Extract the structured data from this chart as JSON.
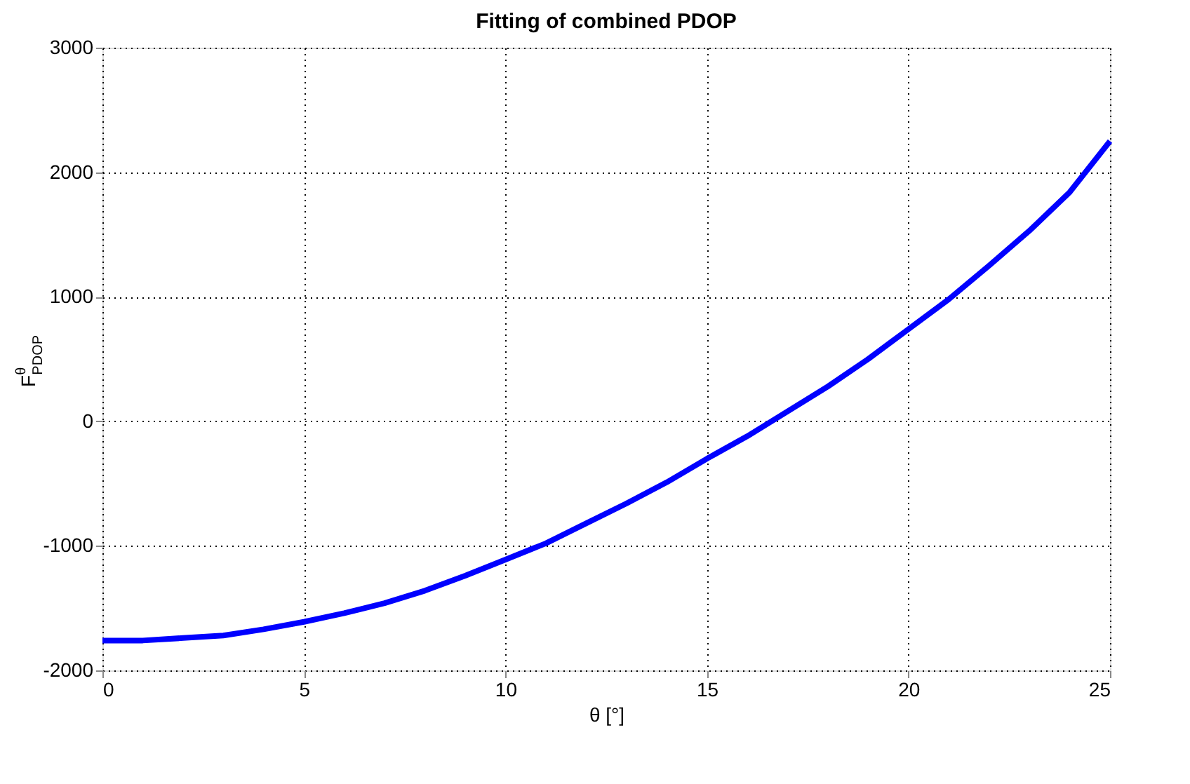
{
  "chart_data": {
    "type": "line",
    "title": "Fitting of combined PDOP",
    "xlabel": "θ [°]",
    "ylabel": "F$^{θ}$$_{PDOP}$",
    "x": [
      0,
      1,
      2,
      3,
      4,
      5,
      6,
      7,
      8,
      9,
      10,
      11,
      12,
      13,
      14,
      15,
      16,
      17,
      18,
      19,
      20,
      21,
      22,
      23,
      24,
      25
    ],
    "series": [
      {
        "color": "#0000ff",
        "values": [
          -1760,
          -1760,
          -1740,
          -1720,
          -1670,
          -1610,
          -1540,
          -1460,
          -1360,
          -1240,
          -1110,
          -980,
          -820,
          -660,
          -490,
          -300,
          -120,
          80,
          280,
          500,
          740,
          980,
          1250,
          1530,
          1840,
          2250
        ]
      }
    ],
    "xlim": [
      0,
      25
    ],
    "xticks": [
      0,
      5,
      10,
      15,
      20,
      25
    ],
    "ylim": [
      -2000,
      3000
    ],
    "yticks": [
      -2000,
      -1000,
      0,
      1000,
      2000,
      3000
    ],
    "grid": true,
    "line_style": "solid",
    "marker": "none"
  }
}
